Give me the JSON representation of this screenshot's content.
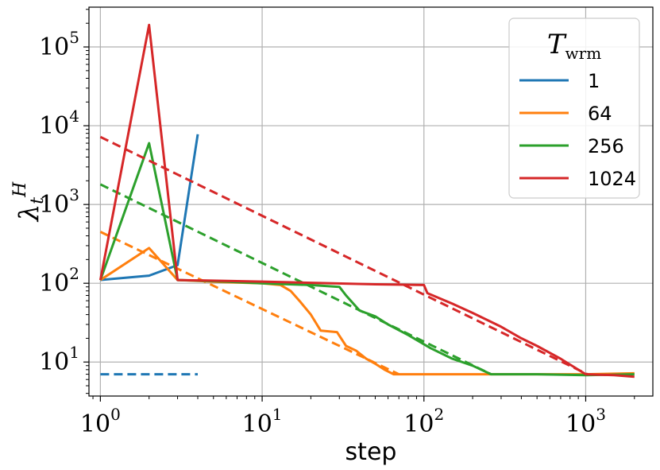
{
  "chart_data": {
    "type": "line",
    "xlabel": "step",
    "ylabel": "λ",
    "ylabel_sup": "H",
    "ylabel_sub": "t",
    "xscale": "log",
    "yscale": "log",
    "xlim": [
      0.85,
      2600
    ],
    "ylim": [
      3.7,
      320000
    ],
    "grid": true,
    "legend_position": "top-right",
    "legend_title": "T",
    "legend_title_sub": "wrm",
    "x_ticks": [
      {
        "base": "10",
        "exp": "0",
        "value": 1
      },
      {
        "base": "10",
        "exp": "1",
        "value": 10
      },
      {
        "base": "10",
        "exp": "2",
        "value": 100
      },
      {
        "base": "10",
        "exp": "3",
        "value": 1000
      }
    ],
    "y_ticks": [
      {
        "base": "10",
        "exp": "1",
        "value": 10
      },
      {
        "base": "10",
        "exp": "2",
        "value": 100
      },
      {
        "base": "10",
        "exp": "3",
        "value": 1000
      },
      {
        "base": "10",
        "exp": "4",
        "value": 10000
      },
      {
        "base": "10",
        "exp": "5",
        "value": 100000
      }
    ],
    "series": [
      {
        "name": "1",
        "color": "#1f77b4",
        "values": [
          [
            1,
            110
          ],
          [
            2,
            125
          ],
          [
            3,
            170
          ],
          [
            4,
            7800
          ]
        ],
        "fit": [
          [
            1,
            7
          ],
          [
            4,
            7
          ]
        ]
      },
      {
        "name": "64",
        "color": "#ff7f0e",
        "values": [
          [
            1,
            110
          ],
          [
            2,
            280
          ],
          [
            3,
            110
          ],
          [
            6,
            103
          ],
          [
            10,
            100
          ],
          [
            13,
            95
          ],
          [
            15,
            80
          ],
          [
            17,
            60
          ],
          [
            20,
            40
          ],
          [
            23,
            25
          ],
          [
            29,
            24
          ],
          [
            33,
            16
          ],
          [
            38,
            14
          ],
          [
            44,
            11
          ],
          [
            50,
            9.5
          ],
          [
            57,
            8
          ],
          [
            65,
            7
          ],
          [
            100,
            7
          ],
          [
            200,
            7
          ],
          [
            500,
            7
          ],
          [
            1000,
            7
          ],
          [
            2000,
            7.2
          ]
        ],
        "fit": [
          [
            1,
            450
          ],
          [
            70,
            7
          ]
        ]
      },
      {
        "name": "256",
        "color": "#2ca02c",
        "values": [
          [
            1,
            110
          ],
          [
            2,
            6000
          ],
          [
            3,
            110
          ],
          [
            6,
            105
          ],
          [
            10,
            100
          ],
          [
            20,
            95
          ],
          [
            30,
            90
          ],
          [
            33,
            70
          ],
          [
            40,
            45
          ],
          [
            50,
            38
          ],
          [
            60,
            30
          ],
          [
            80,
            22
          ],
          [
            110,
            15
          ],
          [
            150,
            11
          ],
          [
            200,
            9
          ],
          [
            260,
            7
          ],
          [
            500,
            7
          ],
          [
            1000,
            6.8
          ],
          [
            2000,
            7
          ]
        ],
        "fit": [
          [
            1,
            1800
          ],
          [
            260,
            7
          ]
        ]
      },
      {
        "name": "1024",
        "color": "#d62728",
        "values": [
          [
            1,
            110
          ],
          [
            2,
            190000
          ],
          [
            3,
            110
          ],
          [
            10,
            105
          ],
          [
            50,
            97
          ],
          [
            100,
            95
          ],
          [
            105,
            75
          ],
          [
            150,
            55
          ],
          [
            200,
            42
          ],
          [
            300,
            28
          ],
          [
            400,
            20
          ],
          [
            500,
            16
          ],
          [
            700,
            11
          ],
          [
            1000,
            7
          ],
          [
            1500,
            6.8
          ],
          [
            2000,
            6.5
          ]
        ],
        "fit": [
          [
            1,
            7200
          ],
          [
            1024,
            7
          ]
        ]
      }
    ]
  }
}
